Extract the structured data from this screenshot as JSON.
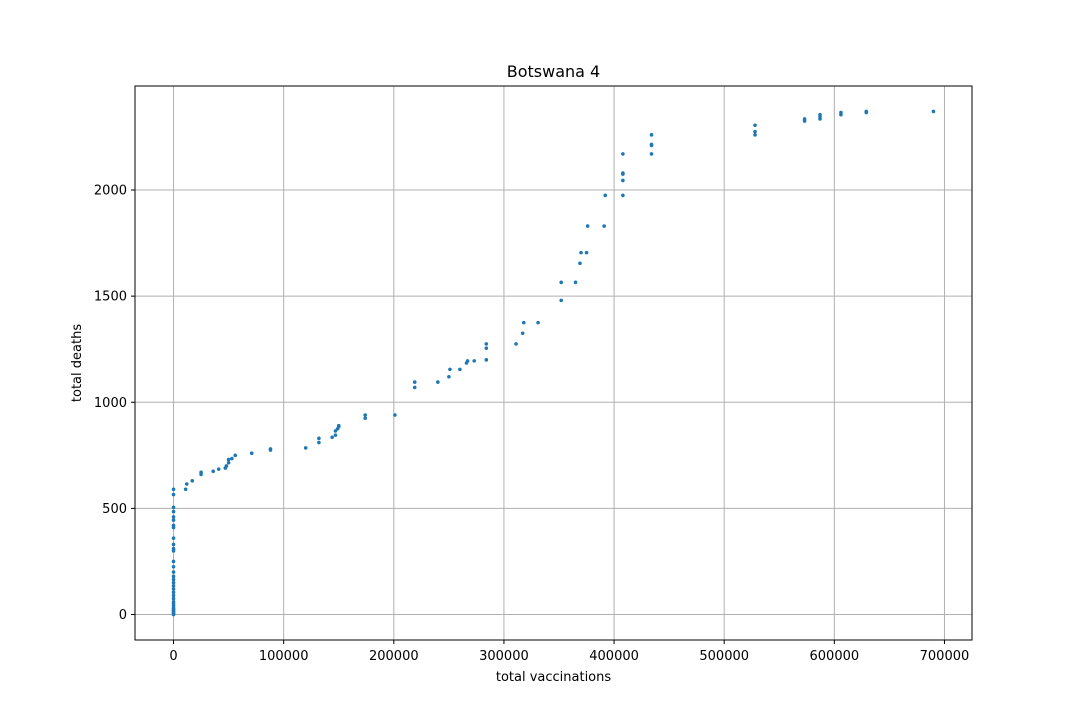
{
  "chart_data": {
    "type": "scatter",
    "title": "Botswana 4",
    "xlabel": "total vaccinations",
    "ylabel": "total deaths",
    "xlim": [
      -35000,
      725000
    ],
    "ylim": [
      -120,
      2490
    ],
    "xticks": [
      0,
      100000,
      200000,
      300000,
      400000,
      500000,
      600000,
      700000
    ],
    "yticks": [
      0,
      500,
      1000,
      1500,
      2000
    ],
    "grid": true,
    "marker_color": "#1f77b4",
    "points": [
      [
        0,
        0
      ],
      [
        0,
        5
      ],
      [
        0,
        10
      ],
      [
        0,
        15
      ],
      [
        0,
        20
      ],
      [
        0,
        25
      ],
      [
        0,
        30
      ],
      [
        0,
        40
      ],
      [
        0,
        50
      ],
      [
        0,
        60
      ],
      [
        0,
        75
      ],
      [
        0,
        90
      ],
      [
        0,
        105
      ],
      [
        0,
        120
      ],
      [
        0,
        135
      ],
      [
        0,
        150
      ],
      [
        0,
        165
      ],
      [
        0,
        180
      ],
      [
        0,
        200
      ],
      [
        0,
        225
      ],
      [
        0,
        250
      ],
      [
        0,
        300
      ],
      [
        0,
        310
      ],
      [
        0,
        330
      ],
      [
        0,
        360
      ],
      [
        0,
        410
      ],
      [
        0,
        420
      ],
      [
        0,
        445
      ],
      [
        0,
        460
      ],
      [
        0,
        485
      ],
      [
        0,
        505
      ],
      [
        0,
        565
      ],
      [
        0,
        590
      ],
      [
        11000,
        590
      ],
      [
        12000,
        615
      ],
      [
        17000,
        630
      ],
      [
        25000,
        660
      ],
      [
        25000,
        670
      ],
      [
        36000,
        675
      ],
      [
        41000,
        685
      ],
      [
        47000,
        690
      ],
      [
        48000,
        700
      ],
      [
        50000,
        715
      ],
      [
        50000,
        730
      ],
      [
        53000,
        735
      ],
      [
        56000,
        750
      ],
      [
        71000,
        760
      ],
      [
        88000,
        775
      ],
      [
        88000,
        780
      ],
      [
        120000,
        785
      ],
      [
        132000,
        810
      ],
      [
        132000,
        830
      ],
      [
        144000,
        835
      ],
      [
        147000,
        845
      ],
      [
        147000,
        865
      ],
      [
        149000,
        875
      ],
      [
        150000,
        885
      ],
      [
        150000,
        890
      ],
      [
        174000,
        925
      ],
      [
        174000,
        940
      ],
      [
        201000,
        940
      ],
      [
        219000,
        1070
      ],
      [
        219000,
        1095
      ],
      [
        240000,
        1095
      ],
      [
        250000,
        1120
      ],
      [
        251000,
        1155
      ],
      [
        260000,
        1155
      ],
      [
        266000,
        1185
      ],
      [
        267000,
        1195
      ],
      [
        273000,
        1195
      ],
      [
        284000,
        1200
      ],
      [
        284000,
        1255
      ],
      [
        284000,
        1275
      ],
      [
        311000,
        1275
      ],
      [
        317000,
        1325
      ],
      [
        318000,
        1375
      ],
      [
        331000,
        1375
      ],
      [
        352000,
        1480
      ],
      [
        352000,
        1565
      ],
      [
        365000,
        1565
      ],
      [
        369000,
        1655
      ],
      [
        370000,
        1705
      ],
      [
        375000,
        1705
      ],
      [
        376000,
        1830
      ],
      [
        391000,
        1830
      ],
      [
        392000,
        1975
      ],
      [
        408000,
        1975
      ],
      [
        408000,
        2045
      ],
      [
        408000,
        2075
      ],
      [
        408000,
        2080
      ],
      [
        408000,
        2170
      ],
      [
        434000,
        2170
      ],
      [
        434000,
        2210
      ],
      [
        434000,
        2215
      ],
      [
        434000,
        2260
      ],
      [
        528000,
        2260
      ],
      [
        528000,
        2275
      ],
      [
        528000,
        2305
      ],
      [
        573000,
        2325
      ],
      [
        573000,
        2335
      ],
      [
        587000,
        2335
      ],
      [
        587000,
        2345
      ],
      [
        587000,
        2355
      ],
      [
        606000,
        2355
      ],
      [
        606000,
        2365
      ],
      [
        629000,
        2365
      ],
      [
        629000,
        2370
      ],
      [
        690000,
        2370
      ]
    ]
  }
}
